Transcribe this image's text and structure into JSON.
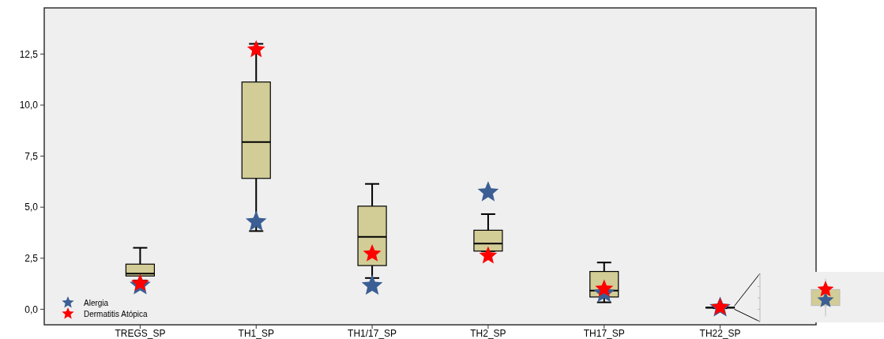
{
  "chart_data": {
    "type": "box",
    "categories": [
      "TREGS_SP",
      "TH1_SP",
      "TH1/17_SP",
      "TH2_SP",
      "TH17_SP",
      "TH22_SP"
    ],
    "ylim": [
      -0.76,
      14.76
    ],
    "yticks": [
      {
        "value": 0,
        "label": "0,0"
      },
      {
        "value": 2.5,
        "label": "2,5"
      },
      {
        "value": 5,
        "label": "5,0"
      },
      {
        "value": 7.5,
        "label": "7,5"
      },
      {
        "value": 10,
        "label": "10,0"
      },
      {
        "value": 12.5,
        "label": "12,5"
      }
    ],
    "grid": false,
    "legend": "bottom left",
    "marker": "star",
    "series": [
      {
        "color": "#d2cc96",
        "boxes": [
          {
            "low": 1.41,
            "q1": 1.63,
            "median": 1.75,
            "q3": 2.21,
            "high": 3.01
          },
          {
            "low": 3.83,
            "q1": 6.41,
            "median": 8.19,
            "q3": 11.13,
            "high": 13.0
          },
          {
            "low": 1.53,
            "q1": 2.14,
            "median": 3.55,
            "q3": 5.05,
            "high": 6.14
          },
          {
            "low": 2.85,
            "q1": 2.85,
            "median": 3.22,
            "q3": 3.87,
            "high": 4.66
          },
          {
            "low": 0.34,
            "q1": 0.6,
            "median": 0.91,
            "q3": 1.85,
            "high": 2.29
          },
          {
            "low": 0.05,
            "q1": 0.07,
            "median": 0.08,
            "q3": 0.1,
            "high": 0.12
          }
        ]
      },
      {
        "type": "scatter",
        "name": "Alergia",
        "color": "#3b5f94",
        "x": [
          "TREGS_SP",
          "TH1_SP",
          "TH1/17_SP",
          "TH2_SP",
          "TH17_SP",
          "TH22_SP"
        ],
        "values": [
          1.17,
          4.28,
          1.15,
          5.73,
          0.79,
          0.08
        ]
      },
      {
        "type": "scatter",
        "name": "Dermatitis Atópica",
        "color": "#ff0000",
        "x": [
          "TREGS_SP",
          "TH1_SP",
          "TH1/17_SP",
          "TH2_SP",
          "TH17_SP",
          "TH22_SP"
        ],
        "values": [
          1.27,
          12.72,
          2.72,
          2.62,
          1.0,
          0.1
        ]
      }
    ]
  }
}
